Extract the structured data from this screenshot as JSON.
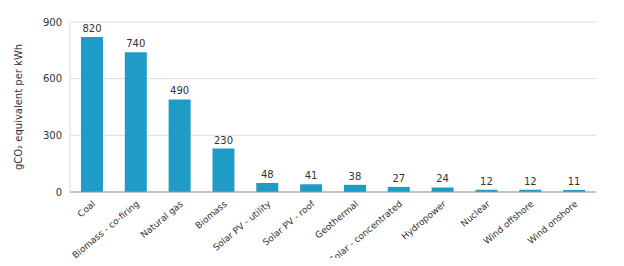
{
  "chart_data": {
    "type": "bar",
    "y_label": "gCO₂ equivalent per kWh",
    "categories": [
      "Coal",
      "Biomass - co-firing",
      "Natural gas",
      "Biomass",
      "Solar PV - utility",
      "Solar PV - roof",
      "Geothermal",
      "Solar - concentrated",
      "Hydropower",
      "Nuclear",
      "Wind offshore",
      "Wind onshore"
    ],
    "values": [
      820,
      740,
      490,
      230,
      48,
      41,
      38,
      27,
      24,
      12,
      12,
      11
    ],
    "color": "#1f9bc7",
    "ylim": [
      0,
      900
    ],
    "yticks": [
      0,
      300,
      600,
      900
    ],
    "grid": true,
    "data_labels": true
  }
}
